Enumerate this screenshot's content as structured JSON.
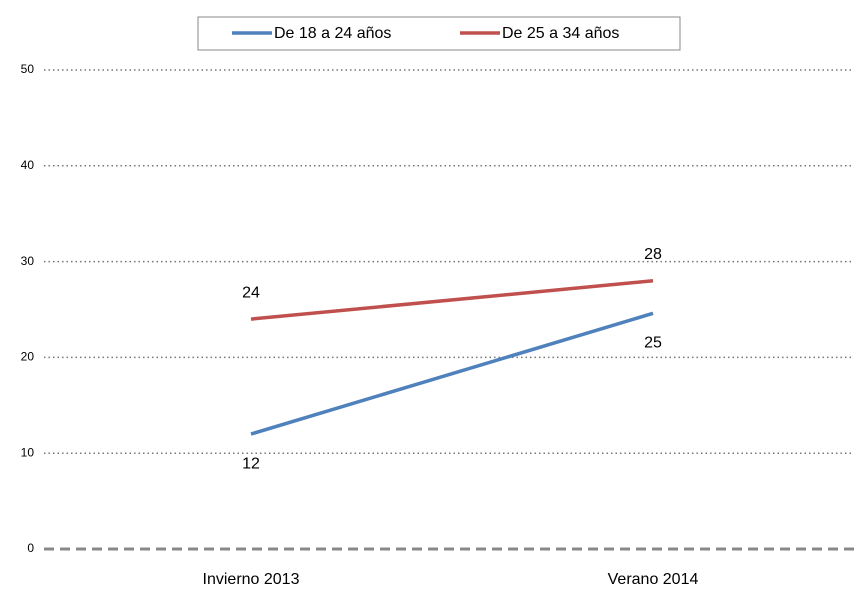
{
  "chart_data": {
    "type": "line",
    "categories": [
      "Invierno 2013",
      "Verano 2014"
    ],
    "series": [
      {
        "name": "De 18 a 24 años",
        "color": "#4f81bd",
        "values": [
          12,
          24.6
        ],
        "value_labels": [
          "12",
          "25"
        ]
      },
      {
        "name": "De 25 a 34 años",
        "color": "#c0504d",
        "values": [
          24,
          28
        ],
        "value_labels": [
          "24",
          "28"
        ]
      }
    ],
    "ylim": [
      0,
      50
    ],
    "yticks": [
      0,
      10,
      20,
      30,
      40,
      50
    ],
    "grid": true,
    "legend": "top"
  }
}
